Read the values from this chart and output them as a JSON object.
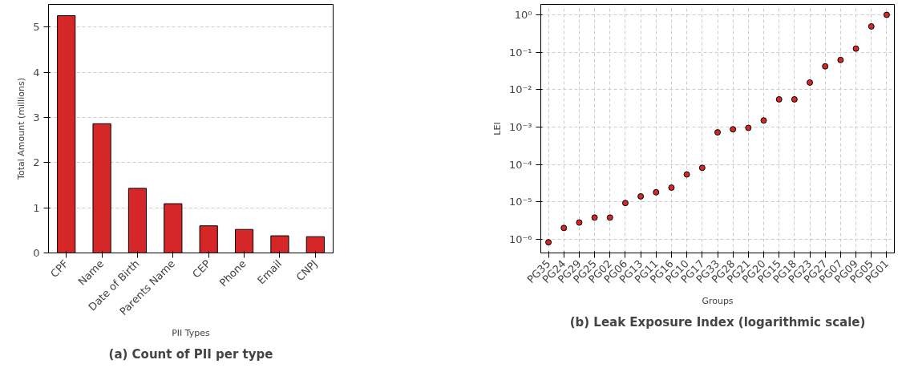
{
  "chart_data": [
    {
      "type": "bar",
      "title": "(a) Count of PII per type",
      "xlabel": "PII Types",
      "ylabel": "Total Amount (millions)",
      "categories": [
        "CPF",
        "Name",
        "Date of Birth",
        "Parents Name",
        "CEP",
        "Phone",
        "Email",
        "CNPJ"
      ],
      "values": [
        5.25,
        2.86,
        1.43,
        1.09,
        0.6,
        0.52,
        0.38,
        0.36
      ],
      "color": "#d62728",
      "ylim": [
        0,
        5.5
      ],
      "yticks": [
        0,
        1,
        2,
        3,
        4,
        5
      ],
      "grid": "y"
    },
    {
      "type": "scatter",
      "title": "(b) Leak Exposure Index (logarithmic scale)",
      "xlabel": "Groups",
      "ylabel": "LEI",
      "log": "y",
      "categories": [
        "PG35",
        "PG24",
        "PG29",
        "PG25",
        "PG02",
        "PG06",
        "PG13",
        "PG11",
        "PG16",
        "PG10",
        "PG17",
        "PG33",
        "PG28",
        "PG21",
        "PG20",
        "PG15",
        "PG18",
        "PG23",
        "PG27",
        "PG07",
        "PG09",
        "PG05",
        "PG01"
      ],
      "values": [
        8.3e-07,
        2e-06,
        2.8e-06,
        3.8e-06,
        3.8e-06,
        9.3e-06,
        1.4e-05,
        1.8e-05,
        2.4e-05,
        5.4e-05,
        8.1e-05,
        0.00072,
        0.00087,
        0.00095,
        0.0015,
        0.0055,
        0.0055,
        0.0155,
        0.042,
        0.062,
        0.125,
        0.49,
        1.0
      ],
      "color": "#d62728",
      "marker": "circle",
      "ylim": [
        4.3e-07,
        1.9
      ],
      "yticks": [
        {
          "value": 1e-06,
          "label": "10⁻⁶"
        },
        {
          "value": 1e-05,
          "label": "10⁻⁵"
        },
        {
          "value": 0.0001,
          "label": "10⁻⁴"
        },
        {
          "value": 0.001,
          "label": "10⁻³"
        },
        {
          "value": 0.01,
          "label": "10⁻²"
        },
        {
          "value": 0.1,
          "label": "10⁻¹"
        },
        {
          "value": 1,
          "label": "10⁰"
        }
      ],
      "grid": true
    }
  ]
}
